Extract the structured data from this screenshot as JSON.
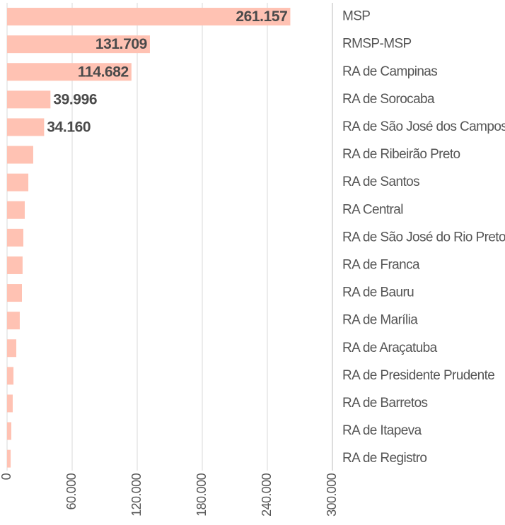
{
  "chart_data": {
    "type": "hbar",
    "categories": [
      "MSP",
      "RMSP-MSP",
      "RA de Campinas",
      "RA de Sorocaba",
      "RA de São José dos Campos",
      "RA de Ribeirão Preto",
      "RA de Santos",
      "RA Central",
      "RA de São José do Rio Preto",
      "RA de Franca",
      "RA de Bauru",
      "RA de Marília",
      "RA de Araçatuba",
      "RA de Presidente Prudente",
      "RA de Barretos",
      "RA de Itapeva",
      "RA de Registro"
    ],
    "values": [
      261157,
      131709,
      114682,
      39996,
      34160,
      24100,
      19600,
      16300,
      15000,
      14300,
      13700,
      11700,
      8500,
      5900,
      5200,
      3900,
      3300
    ],
    "value_labels": [
      "261.157",
      "131.709",
      "114.682",
      "39.996",
      "34.160",
      null,
      null,
      null,
      null,
      null,
      null,
      null,
      null,
      null,
      null,
      null,
      null
    ],
    "color": "#ffc2b3",
    "xlim": [
      0,
      300000
    ],
    "xticks": [
      0,
      {
        "value": 60000,
        "label": "60.000"
      },
      {
        "value": 120000,
        "label": "120.000"
      },
      {
        "value": 180000,
        "label": "180.000"
      },
      {
        "value": 240000,
        "label": "240.000"
      },
      {
        "value": 300000,
        "label": "300.000"
      }
    ],
    "grid": true
  }
}
